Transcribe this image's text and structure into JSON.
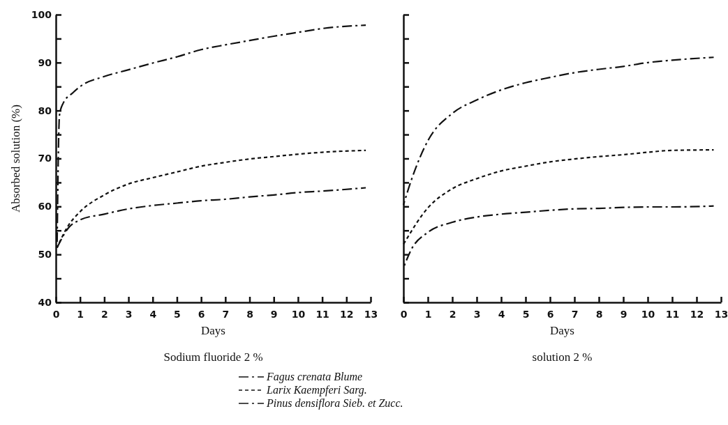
{
  "chart_data": [
    {
      "type": "line",
      "title": "Sodium fluoride  2 %",
      "xlabel": "Days",
      "ylabel": "Absorbed solution (%)",
      "xlim": [
        0,
        13
      ],
      "ylim": [
        40,
        100
      ],
      "xticks": [
        0,
        1,
        2,
        3,
        4,
        5,
        6,
        7,
        8,
        9,
        10,
        11,
        12,
        13
      ],
      "yticks": [
        40,
        {
          "value": 45,
          "label": null
        },
        50,
        {
          "value": 55,
          "label": null
        },
        60,
        {
          "value": 65,
          "label": null
        },
        70,
        {
          "value": 75,
          "label": null
        },
        80,
        {
          "value": 85,
          "label": null
        },
        90,
        {
          "value": 95,
          "label": null
        },
        100
      ],
      "series": [
        {
          "color": "#111111",
          "line_style": "dashed",
          "x": [
            0.05,
            0.15,
            0.3,
            0.7,
            1,
            2,
            3,
            4,
            5,
            6,
            7,
            8,
            9,
            10,
            11,
            12.8
          ],
          "values": [
            51.4,
            79,
            81.5,
            83.7,
            85,
            87.1,
            88.5,
            89.9,
            91.2,
            92.7,
            93.7,
            94.6,
            95.5,
            96.3,
            97.1,
            97.8
          ]
        },
        {
          "color": "#111111",
          "line_style": "dotted",
          "x": [
            0.05,
            0.5,
            1,
            2,
            3,
            4,
            5,
            6,
            7,
            8,
            9,
            10,
            11,
            12.8
          ],
          "values": [
            51.4,
            55.9,
            58.9,
            62.4,
            64.7,
            66,
            67.2,
            68.4,
            69.2,
            69.9,
            70.4,
            70.9,
            71.3,
            71.7
          ]
        },
        {
          "color": "#111111",
          "line_style": "dashed",
          "x": [
            0.05,
            0.5,
            1,
            2,
            3,
            4,
            5,
            6,
            7,
            8,
            9,
            10,
            11,
            12.8
          ],
          "values": [
            51.4,
            55.4,
            57.2,
            58.4,
            59.5,
            60.2,
            60.7,
            61.2,
            61.5,
            62,
            62.4,
            62.9,
            63.2,
            63.9
          ]
        }
      ]
    },
    {
      "type": "line",
      "title": "solution  2 %",
      "xlabel": "Days",
      "legend": "bottom",
      "tick_labels": "x",
      "xlim": [
        0,
        13
      ],
      "ylim": [
        40,
        100
      ],
      "xticks": [
        0,
        1,
        2,
        3,
        4,
        5,
        6,
        7,
        8,
        9,
        10,
        11,
        12,
        13
      ],
      "yticks": [
        {
          "value": 40,
          "label": null
        },
        {
          "value": 45,
          "label": null
        },
        {
          "value": 50,
          "label": null
        },
        {
          "value": 55,
          "label": null
        },
        {
          "value": 60,
          "label": null
        },
        {
          "value": 65,
          "label": null
        },
        {
          "value": 70,
          "label": null
        },
        {
          "value": 75,
          "label": null
        },
        {
          "value": 80,
          "label": null
        },
        {
          "value": 85,
          "label": null
        },
        {
          "value": 90,
          "label": null
        },
        {
          "value": 95,
          "label": null
        },
        {
          "value": 100,
          "label": null
        }
      ],
      "series": [
        {
          "name": "Fagus crenata Blume",
          "color": "#111111",
          "line_style": "dashed",
          "x": [
            0,
            0.33,
            1,
            2,
            3,
            4,
            5,
            6,
            7,
            8,
            9,
            10,
            11,
            12.7
          ],
          "values": [
            60.3,
            65.6,
            73.7,
            79.4,
            82.2,
            84.3,
            85.8,
            86.9,
            87.9,
            88.6,
            89.2,
            90,
            90.5,
            91.1
          ]
        },
        {
          "name": "Larix Kaempferi Sarg.",
          "color": "#111111",
          "line_style": "dotted",
          "x": [
            0,
            1,
            2,
            3,
            4,
            5,
            6,
            7,
            8,
            9,
            10,
            11,
            12.7
          ],
          "values": [
            52.1,
            59.7,
            63.7,
            65.8,
            67.4,
            68.4,
            69.3,
            69.9,
            70.4,
            70.8,
            71.3,
            71.7,
            71.8
          ]
        },
        {
          "name": "Pinus densiflora Sieb. et Zucc.",
          "color": "#111111",
          "line_style": "dashed",
          "x": [
            0,
            0.33,
            1,
            2,
            3,
            4,
            5,
            6,
            7,
            8,
            9,
            10,
            11,
            12.7
          ],
          "values": [
            47.2,
            51.1,
            54.6,
            56.7,
            57.8,
            58.4,
            58.8,
            59.2,
            59.5,
            59.6,
            59.8,
            59.9,
            59.9,
            60.1
          ]
        }
      ]
    }
  ]
}
